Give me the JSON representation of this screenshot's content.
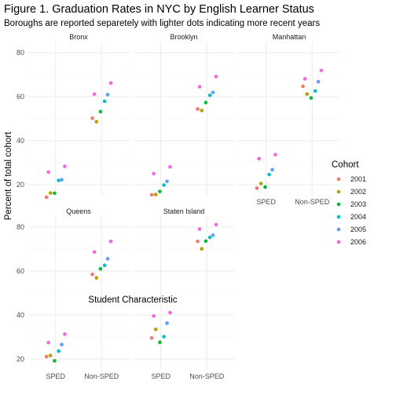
{
  "chart_data": {
    "type": "scatter",
    "title": "Figure 1. Graduation Rates in NYC by English Learner Status",
    "subtitle": "Boroughs are reported separetely with lighter dots indicating more recent years",
    "xlabel": "Student Characteristic",
    "ylabel": "Percent of total cohort",
    "categories": [
      "SPED",
      "Non-SPED"
    ],
    "ylim": [
      15,
      85
    ],
    "yticks": [
      20,
      40,
      60,
      80
    ],
    "grid": true,
    "legend": {
      "title": "Cohort",
      "position": "right",
      "entries": [
        {
          "label": "2001",
          "color": "#F8766D"
        },
        {
          "label": "2002",
          "color": "#B79F00"
        },
        {
          "label": "2003",
          "color": "#00BA38"
        },
        {
          "label": "2004",
          "color": "#00BFC4"
        },
        {
          "label": "2005",
          "color": "#619CFF"
        },
        {
          "label": "2006",
          "color": "#F564E3"
        }
      ]
    },
    "panels": [
      {
        "name": "Bronx",
        "series": [
          {
            "cohort": "2001",
            "SPED": 14.3,
            "Non-SPED": 50.2
          },
          {
            "cohort": "2002",
            "SPED": 16.2,
            "Non-SPED": 48.6
          },
          {
            "cohort": "2003",
            "SPED": 16.1,
            "Non-SPED": 53.2
          },
          {
            "cohort": "2004",
            "SPED": 21.9,
            "Non-SPED": 57.9
          },
          {
            "cohort": "2005",
            "SPED": 22.2,
            "Non-SPED": 60.9
          },
          {
            "cohort": "2006",
            "SPED": 28.3,
            "Non-SPED": 66.2
          }
        ],
        "extra_points": [
          {
            "cohort": "2006",
            "category": "SPED",
            "value": 25.7
          },
          {
            "cohort": "2006",
            "category": "Non-SPED",
            "value": 61.1
          }
        ]
      },
      {
        "name": "Brooklyn",
        "series": [
          {
            "cohort": "2001",
            "SPED": 15.4,
            "Non-SPED": 54.4
          },
          {
            "cohort": "2002",
            "SPED": 15.5,
            "Non-SPED": 53.7
          },
          {
            "cohort": "2003",
            "SPED": 16.9,
            "Non-SPED": 57.3
          },
          {
            "cohort": "2004",
            "SPED": 19.8,
            "Non-SPED": 60.6
          },
          {
            "cohort": "2005",
            "SPED": 21.5,
            "Non-SPED": 61.9
          },
          {
            "cohort": "2006",
            "SPED": 28.1,
            "Non-SPED": 69.1
          }
        ],
        "extra_points": [
          {
            "cohort": "2006",
            "category": "SPED",
            "value": 25.0
          },
          {
            "cohort": "2006",
            "category": "Non-SPED",
            "value": 64.5
          }
        ]
      },
      {
        "name": "Manhattan",
        "series": [
          {
            "cohort": "2001",
            "SPED": 18.4,
            "Non-SPED": 64.7
          },
          {
            "cohort": "2002",
            "SPED": 20.5,
            "Non-SPED": 61.2
          },
          {
            "cohort": "2003",
            "SPED": 18.9,
            "Non-SPED": 59.4
          },
          {
            "cohort": "2004",
            "SPED": 24.6,
            "Non-SPED": 62.6
          },
          {
            "cohort": "2005",
            "SPED": 26.8,
            "Non-SPED": 66.8
          },
          {
            "cohort": "2006",
            "SPED": 33.6,
            "Non-SPED": 71.9
          }
        ],
        "extra_points": [
          {
            "cohort": "2006",
            "category": "SPED",
            "value": 31.8
          },
          {
            "cohort": "2006",
            "category": "Non-SPED",
            "value": 68.1
          }
        ]
      },
      {
        "name": "Queens",
        "series": [
          {
            "cohort": "2001",
            "SPED": 21.1,
            "Non-SPED": 58.5
          },
          {
            "cohort": "2002",
            "SPED": 21.6,
            "Non-SPED": 56.9
          },
          {
            "cohort": "2003",
            "SPED": 19.2,
            "Non-SPED": 61.0
          },
          {
            "cohort": "2004",
            "SPED": 23.6,
            "Non-SPED": 62.6
          },
          {
            "cohort": "2005",
            "SPED": 26.6,
            "Non-SPED": 65.6
          },
          {
            "cohort": "2006",
            "SPED": 31.3,
            "Non-SPED": 73.5
          }
        ],
        "extra_points": [
          {
            "cohort": "2006",
            "category": "SPED",
            "value": 27.5
          },
          {
            "cohort": "2006",
            "category": "Non-SPED",
            "value": 68.7
          }
        ]
      },
      {
        "name": "Staten Island",
        "series": [
          {
            "cohort": "2001",
            "SPED": 29.6,
            "Non-SPED": 73.5
          },
          {
            "cohort": "2002",
            "SPED": 33.5,
            "Non-SPED": 70.1
          },
          {
            "cohort": "2003",
            "SPED": 27.6,
            "Non-SPED": 73.6
          },
          {
            "cohort": "2004",
            "SPED": 30.2,
            "Non-SPED": 75.3
          },
          {
            "cohort": "2005",
            "SPED": 36.3,
            "Non-SPED": 76.3
          },
          {
            "cohort": "2006",
            "SPED": 41.1,
            "Non-SPED": 81.1
          }
        ],
        "extra_points": [
          {
            "cohort": "2006",
            "category": "SPED",
            "value": 39.6
          },
          {
            "cohort": "2006",
            "category": "Non-SPED",
            "value": 79.1
          }
        ]
      }
    ]
  }
}
